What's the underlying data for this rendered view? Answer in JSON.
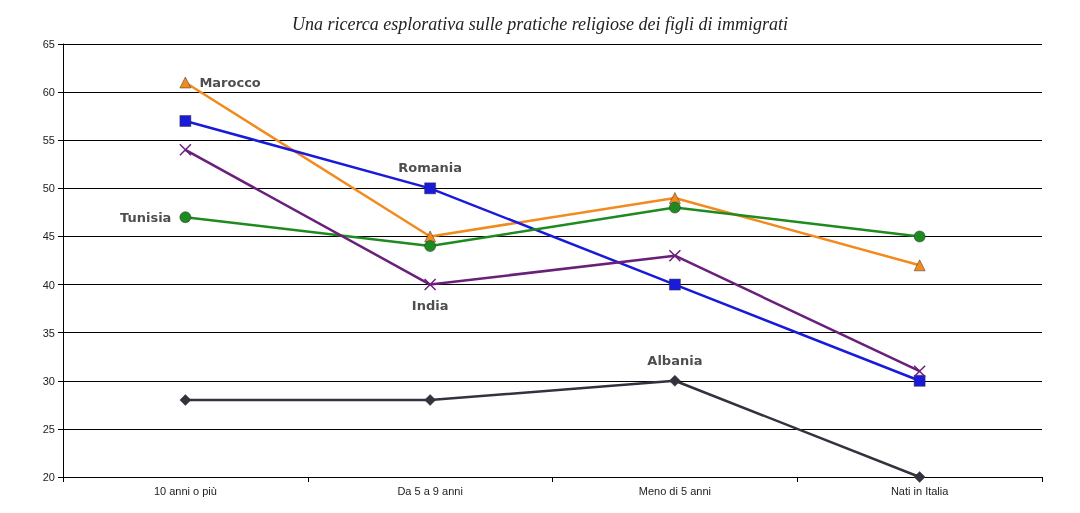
{
  "chart_data": {
    "type": "line",
    "title": "Una ricerca esplorativa sulle pratiche religiose dei figli di immigrati",
    "categories": [
      "10 anni o più",
      "Da 5 a 9 anni",
      "Meno di 5 anni",
      "Nati in Italia"
    ],
    "series": [
      {
        "color": "#f28a1e",
        "marker": "triangle",
        "values": [
          61,
          45,
          49,
          42
        ]
      },
      {
        "color": "#1a1adb",
        "marker": "square",
        "values": [
          57,
          50,
          40,
          30
        ]
      },
      {
        "color": "#1f8a1f",
        "marker": "circle",
        "values": [
          47,
          44,
          48,
          45
        ]
      },
      {
        "color": "#6a1f7a",
        "marker": "cross",
        "values": [
          54,
          40,
          43,
          31
        ]
      },
      {
        "color": "#333340",
        "marker": "diamond",
        "values": [
          28,
          28,
          30,
          20
        ]
      }
    ],
    "annotations": [
      {
        "text": "Marocco",
        "x": "10 anni o più",
        "y": 61
      },
      {
        "text": "Romania",
        "x": "Da 5 a 9 anni",
        "y": 50
      },
      {
        "text": "Tunisia",
        "x": "10 anni o più",
        "y": 47
      },
      {
        "text": "India",
        "x": "Da 5 a 9 anni",
        "y": 40
      },
      {
        "text": "Albania",
        "x": "Meno di 5 anni",
        "y": 30
      }
    ],
    "ylim": [
      20,
      65
    ],
    "yticks": [
      20,
      25,
      30,
      35,
      40,
      45,
      50,
      55,
      60,
      65
    ],
    "grid": "y"
  }
}
